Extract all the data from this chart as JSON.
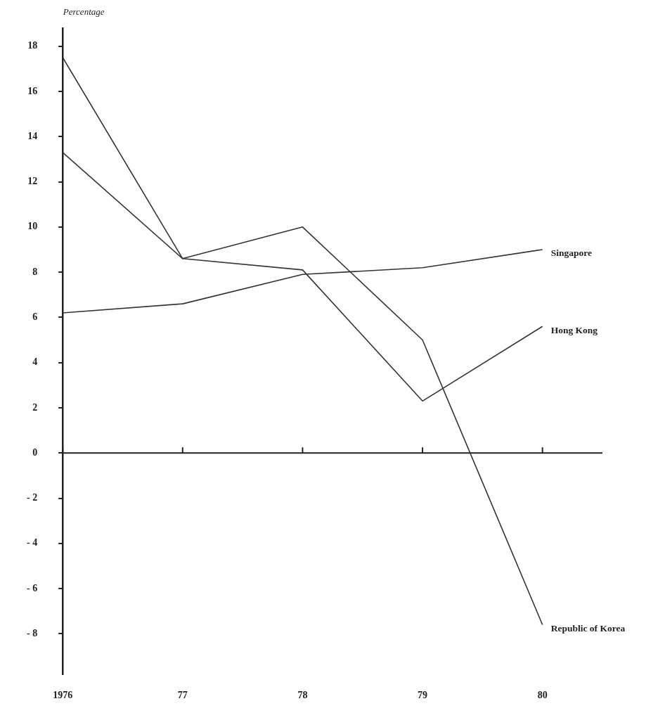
{
  "chart_data": {
    "type": "line",
    "ylabel": "Percentage",
    "x": [
      1976,
      1977,
      1978,
      1979,
      1980
    ],
    "xlim": [
      1976,
      1980.5
    ],
    "xticks": [
      {
        "value": 1976,
        "label": "1976"
      },
      {
        "value": 1977,
        "label": "77"
      },
      {
        "value": 1978,
        "label": "78"
      },
      {
        "value": 1979,
        "label": "79"
      },
      {
        "value": 1980,
        "label": "80"
      }
    ],
    "ylim": [
      -9.8,
      18.8
    ],
    "yticks": [
      {
        "value": -8,
        "label": "- 8"
      },
      {
        "value": -6,
        "label": "- 6"
      },
      {
        "value": -4,
        "label": "- 4"
      },
      {
        "value": -2,
        "label": "- 2"
      },
      0,
      2,
      4,
      6,
      8,
      10,
      12,
      14,
      16,
      18
    ],
    "series": [
      {
        "name": "Singapore",
        "color": "#333333",
        "values": [
          6.2,
          6.6,
          7.9,
          8.2,
          9.0
        ]
      },
      {
        "name": "Hong Kong",
        "color": "#333333",
        "values": [
          13.3,
          8.6,
          8.1,
          2.3,
          5.6
        ]
      },
      {
        "name": "Republic of Korea",
        "color": "#333333",
        "values": [
          17.5,
          8.6,
          10.0,
          5.0,
          -7.6
        ]
      }
    ],
    "ref_lines": [
      {
        "axis": "y",
        "value": 0
      }
    ],
    "grid": false,
    "legend": false,
    "marker": "none",
    "line_style": "solid"
  }
}
